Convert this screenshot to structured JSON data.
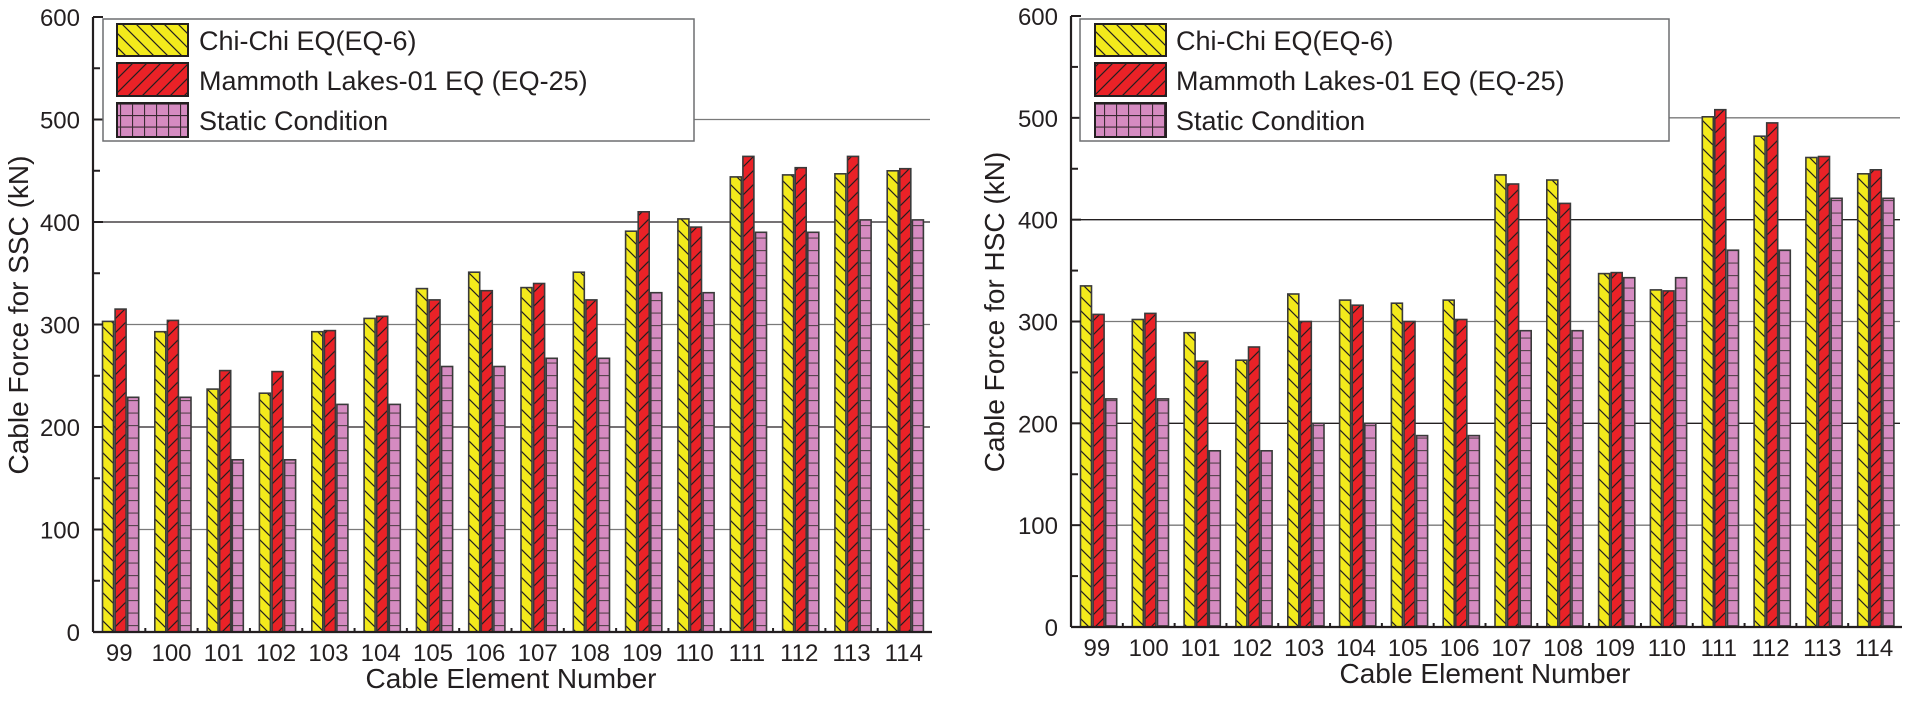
{
  "chart_data": [
    {
      "type": "bar",
      "title": "",
      "xlabel": "Cable Element Number",
      "ylabel": "Cable Force for SSC (kN)",
      "ylim": [
        0,
        600
      ],
      "yticks": [
        "0",
        "100",
        "200",
        "300",
        "400",
        "500",
        "600"
      ],
      "grid": true,
      "legend_position": "top-left",
      "categories": [
        "99",
        "100",
        "101",
        "102",
        "103",
        "104",
        "105",
        "106",
        "107",
        "108",
        "109",
        "110",
        "111",
        "112",
        "113",
        "114"
      ],
      "series": [
        {
          "name": "Chi-Chi EQ(EQ-6)",
          "color": "#f3ea1c",
          "pattern": "back-diagonal",
          "values": [
            303,
            293,
            237,
            233,
            293,
            306,
            335,
            351,
            336,
            351,
            391,
            403,
            444,
            446,
            447,
            450
          ]
        },
        {
          "name": "Mammoth Lakes-01 EQ (EQ-25)",
          "color": "#ea2227",
          "pattern": "forward-diagonal",
          "values": [
            315,
            304,
            255,
            254,
            294,
            308,
            324,
            333,
            340,
            324,
            410,
            395,
            464,
            453,
            464,
            452
          ]
        },
        {
          "name": "Static Condition",
          "color": "#d58bc1",
          "pattern": "grid",
          "values": [
            229,
            229,
            168,
            168,
            222,
            222,
            259,
            259,
            267,
            267,
            331,
            331,
            390,
            390,
            402,
            402
          ]
        }
      ]
    },
    {
      "type": "bar",
      "title": "",
      "xlabel": "Cable Element Number",
      "ylabel": "Cable Force for HSC (kN)",
      "ylim": [
        0,
        600
      ],
      "yticks": [
        "0",
        "100",
        "200",
        "300",
        "400",
        "500",
        "600"
      ],
      "grid": true,
      "legend_position": "top-left",
      "categories": [
        "99",
        "100",
        "101",
        "102",
        "103",
        "104",
        "105",
        "106",
        "107",
        "108",
        "109",
        "110",
        "111",
        "112",
        "113",
        "114"
      ],
      "series": [
        {
          "name": "Chi-Chi EQ(EQ-6)",
          "color": "#f3ea1c",
          "pattern": "back-diagonal",
          "values": [
            335,
            302,
            289,
            262,
            327,
            321,
            318,
            321,
            444,
            439,
            347,
            331,
            501,
            482,
            461,
            445
          ]
        },
        {
          "name": "Mammoth Lakes-01 EQ (EQ-25)",
          "color": "#ea2227",
          "pattern": "forward-diagonal",
          "values": [
            307,
            308,
            261,
            275,
            300,
            316,
            300,
            302,
            435,
            416,
            348,
            330,
            508,
            495,
            462,
            449
          ]
        },
        {
          "name": "Static Condition",
          "color": "#d58bc1",
          "pattern": "grid",
          "values": [
            224,
            224,
            173,
            173,
            200,
            200,
            188,
            188,
            291,
            291,
            343,
            343,
            370,
            370,
            421,
            421
          ]
        }
      ]
    }
  ]
}
